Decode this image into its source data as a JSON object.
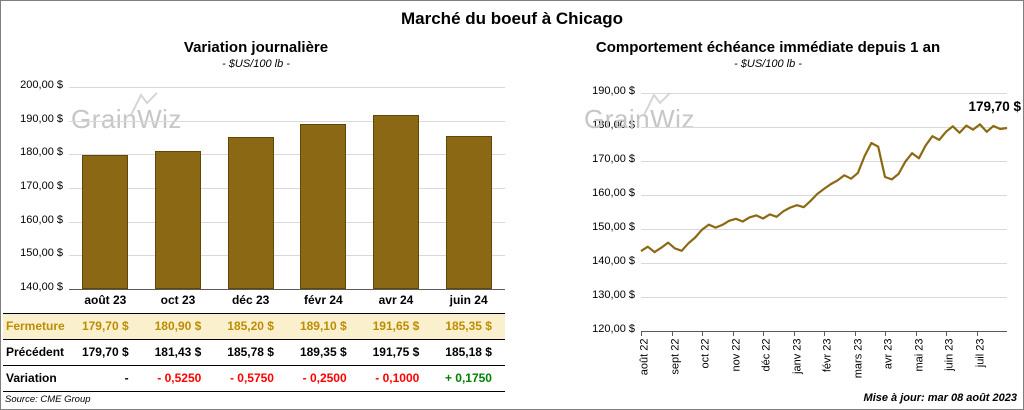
{
  "page_title": "Marché du boeuf à Chicago",
  "watermark": "GrainWiz",
  "footer": {
    "source": "Source: CME Group",
    "updated": "Mise à jour: mar 08 août 2023"
  },
  "colors": {
    "series_gold": "#8B6914",
    "grid": "#D9D9D9",
    "axis": "#595959",
    "fermeture_bg": "#FBF0CE",
    "fermeture_text": "#BD8D00",
    "negative": "#FF0000",
    "positive": "#008000",
    "watermark_gray": "#C6C6C6"
  },
  "chart_data": [
    {
      "type": "bar",
      "title": "Variation journalière",
      "subtitle": "- $US/100 lb -",
      "categories": [
        "août 23",
        "oct 23",
        "déc 23",
        "févr 24",
        "avr 24",
        "juin 24"
      ],
      "values": [
        179.7,
        180.9,
        185.2,
        189.1,
        191.65,
        185.35
      ],
      "ylim": [
        140,
        200
      ],
      "ytick_labels_top_down": [
        "200,00 $",
        "190,00 $",
        "180,00 $",
        "170,00 $",
        "160,00 $",
        "150,00 $",
        "140,00 $"
      ],
      "grid": true,
      "legend": "none"
    },
    {
      "type": "line",
      "title": "Comportement échéance immédiate depuis 1 an",
      "subtitle": "- $US/100 lb -",
      "x_labels": [
        "août 22",
        "sept 22",
        "oct 22",
        "nov 22",
        "déc 22",
        "janv 23",
        "févr 23",
        "mars 23",
        "avr 23",
        "mai 23",
        "juin 23",
        "juil 23"
      ],
      "values": [
        143.5,
        144.8,
        143.2,
        144.5,
        146.0,
        144.3,
        143.6,
        145.8,
        147.5,
        149.8,
        151.3,
        150.4,
        151.2,
        152.4,
        153.0,
        152.2,
        153.4,
        154.0,
        153.1,
        154.3,
        153.6,
        155.2,
        156.3,
        157.0,
        156.4,
        158.2,
        160.3,
        161.8,
        163.2,
        164.3,
        165.8,
        164.8,
        166.5,
        171.5,
        175.3,
        174.2,
        165.3,
        164.6,
        166.2,
        169.8,
        172.3,
        170.8,
        174.6,
        177.3,
        176.2,
        178.6,
        180.2,
        178.3,
        180.4,
        179.2,
        180.8,
        178.6,
        180.3,
        179.4,
        179.7
      ],
      "ylim": [
        120,
        190
      ],
      "ytick_labels_top_down": [
        "190,00 $",
        "180,00 $",
        "170,00 $",
        "160,00 $",
        "150,00 $",
        "140,00 $",
        "130,00 $",
        "120,00 $"
      ],
      "annotation": "179,70 $",
      "grid": true,
      "legend": "none"
    }
  ],
  "table": {
    "rows": [
      {
        "label": "Fermeture",
        "values": [
          "179,70 $",
          "180,90 $",
          "185,20 $",
          "189,10 $",
          "191,65 $",
          "185,35 $"
        ]
      },
      {
        "label": "Précédent",
        "values": [
          "179,70 $",
          "181,43 $",
          "185,78 $",
          "189,35 $",
          "191,75 $",
          "185,18 $"
        ]
      },
      {
        "label": "Variation",
        "values": [
          "-",
          "- 0,5250",
          "- 0,5750",
          "- 0,2500",
          "- 0,1000",
          "+ 0,1750"
        ],
        "value_colors": [
          "#000000",
          "#FF0000",
          "#FF0000",
          "#FF0000",
          "#FF0000",
          "#008000"
        ]
      }
    ]
  }
}
